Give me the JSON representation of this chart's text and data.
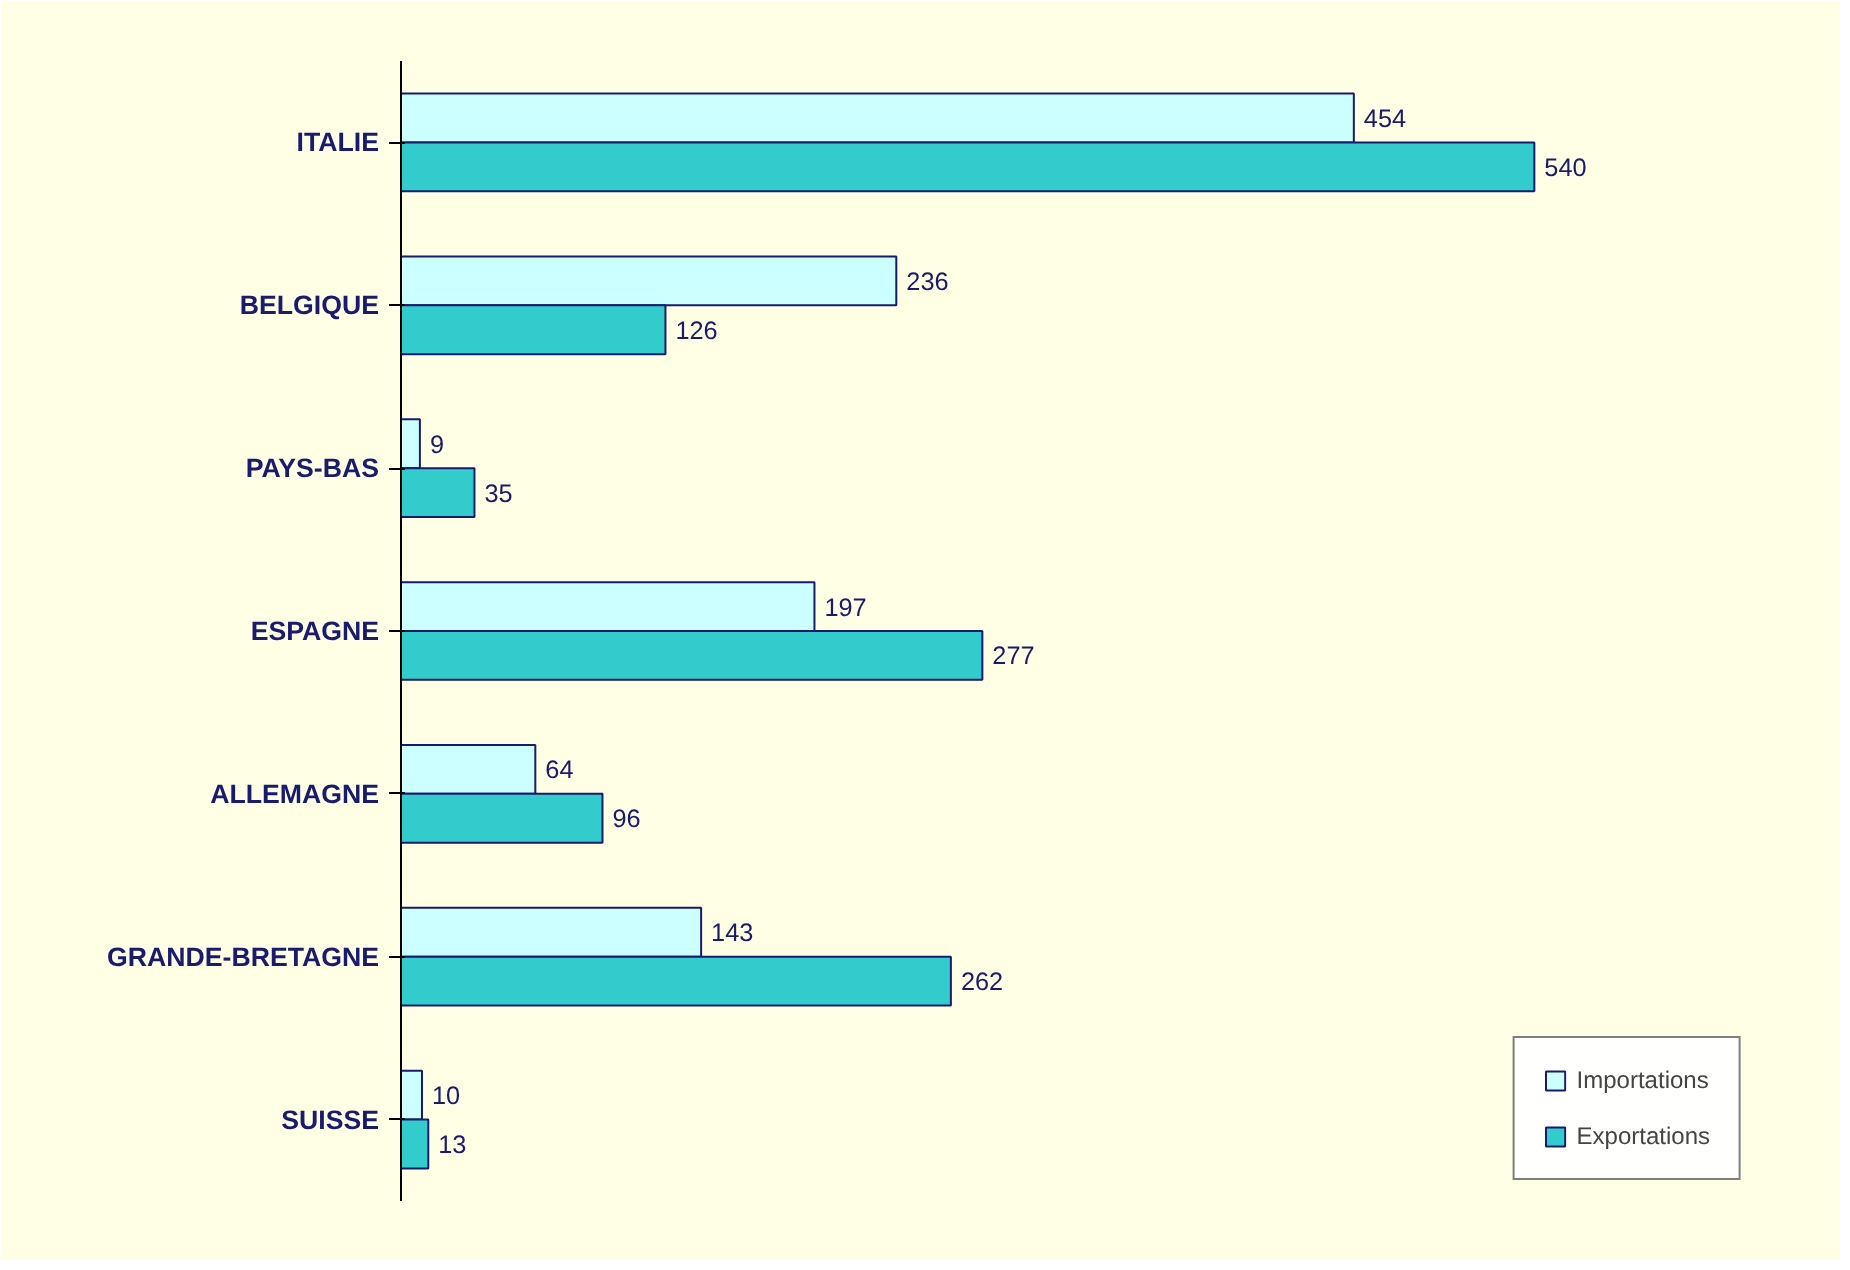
{
  "chart_data": {
    "type": "bar",
    "orientation": "horizontal",
    "categories": [
      "ITALIE",
      "BELGIQUE",
      "PAYS-BAS",
      "ESPAGNE",
      "ALLEMAGNE",
      "GRANDE-BRETAGNE",
      "SUISSE"
    ],
    "series": [
      {
        "name": "Importations",
        "color": "#ccffff",
        "values": [
          454,
          236,
          9,
          197,
          64,
          143,
          10
        ]
      },
      {
        "name": "Exportations",
        "color": "#33cccc",
        "values": [
          540,
          126,
          35,
          277,
          96,
          262,
          13
        ]
      }
    ],
    "data_labels": true,
    "legend": "bottom right",
    "grid": false
  }
}
